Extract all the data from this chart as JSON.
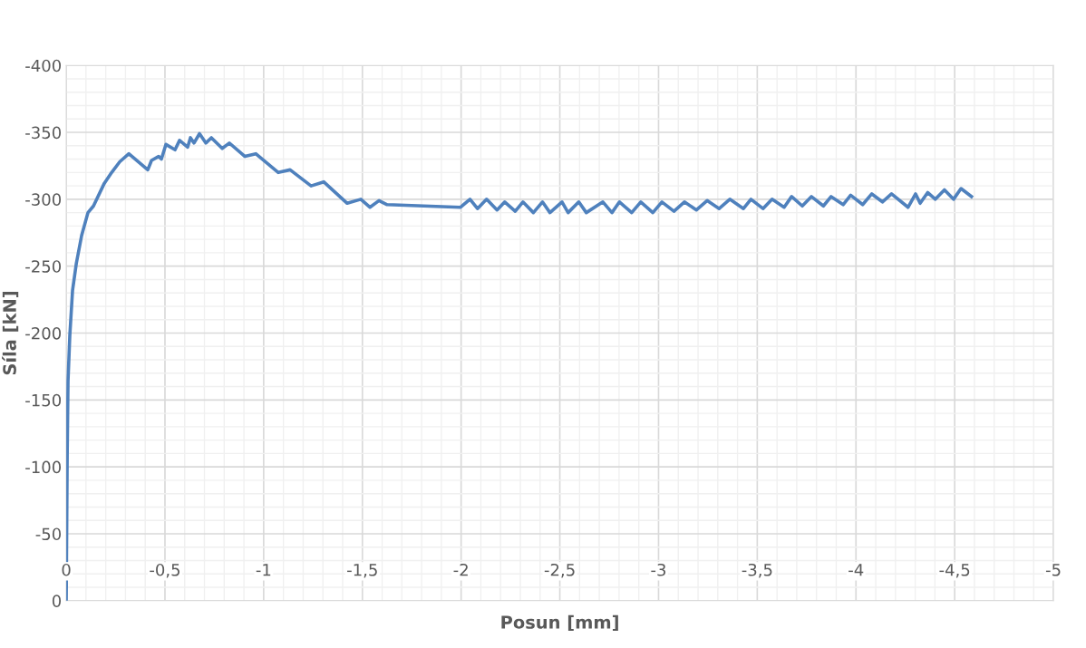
{
  "chart_data": {
    "type": "line",
    "xlabel": "Posun [mm]",
    "ylabel": "Síla [kN]",
    "xlim": [
      0,
      -5
    ],
    "ylim": [
      0,
      -400
    ],
    "xticks": [
      0,
      {
        "value": -0.5,
        "label": "-0,5"
      },
      -1,
      {
        "value": -1.5,
        "label": "-1,5"
      },
      -2,
      {
        "value": -2.5,
        "label": "-2,5"
      },
      -3,
      {
        "value": -3.5,
        "label": "-3,5"
      },
      -4,
      {
        "value": -4.5,
        "label": "-4,5"
      },
      -5
    ],
    "yticks": [
      0,
      -50,
      -100,
      -150,
      -200,
      -250,
      -300,
      -350,
      -400
    ],
    "grid": true,
    "marker": "none",
    "line_style": "solid",
    "series": [
      {
        "color": "#4f81bd",
        "x": [
          0,
          -0.005,
          -0.009,
          -0.018,
          -0.032,
          -0.051,
          -0.078,
          -0.11,
          -0.138,
          -0.193,
          -0.23,
          -0.271,
          -0.317,
          -0.413,
          -0.432,
          -0.468,
          -0.482,
          -0.505,
          -0.551,
          -0.574,
          -0.615,
          -0.629,
          -0.647,
          -0.675,
          -0.707,
          -0.735,
          -0.79,
          -0.826,
          -0.905,
          -0.96,
          -1.074,
          -1.134,
          -1.24,
          -1.304,
          -1.423,
          -1.492,
          -1.538,
          -1.584,
          -1.625,
          -1.997,
          -2.045,
          -2.083,
          -2.129,
          -2.182,
          -2.221,
          -2.274,
          -2.313,
          -2.366,
          -2.412,
          -2.45,
          -2.511,
          -2.542,
          -2.596,
          -2.634,
          -2.718,
          -2.764,
          -2.802,
          -2.864,
          -2.91,
          -2.971,
          -3.017,
          -3.078,
          -3.131,
          -3.192,
          -3.246,
          -3.307,
          -3.361,
          -3.43,
          -3.468,
          -3.529,
          -3.575,
          -3.636,
          -3.674,
          -3.728,
          -3.774,
          -3.835,
          -3.874,
          -3.935,
          -3.973,
          -4.034,
          -4.08,
          -4.134,
          -4.18,
          -4.264,
          -4.302,
          -4.325,
          -4.363,
          -4.402,
          -4.448,
          -4.494,
          -4.532,
          -4.585
        ],
        "values": [
          0,
          -110,
          -164,
          -198,
          -232,
          -252,
          -273,
          -290,
          -295,
          -312,
          -320,
          -328,
          -334,
          -322,
          -329,
          -332,
          -330,
          -341,
          -337,
          -344,
          -339,
          -346,
          -342,
          -349,
          -342,
          -346,
          -338,
          -342,
          -332,
          -334,
          -320,
          -322,
          -310,
          -313,
          -297,
          -300,
          -294,
          -299,
          -296,
          -294,
          -300,
          -293,
          -300,
          -292,
          -298,
          -291,
          -298,
          -290,
          -298,
          -290,
          -298,
          -290,
          -298,
          -290,
          -298,
          -290,
          -298,
          -290,
          -298,
          -290,
          -298,
          -291,
          -298,
          -292,
          -299,
          -293,
          -300,
          -293,
          -300,
          -293,
          -300,
          -294,
          -302,
          -295,
          -302,
          -295,
          -302,
          -296,
          -303,
          -296,
          -304,
          -298,
          -304,
          -294,
          -304,
          -297,
          -305,
          -300,
          -307,
          -300,
          -308,
          -302
        ]
      }
    ]
  }
}
